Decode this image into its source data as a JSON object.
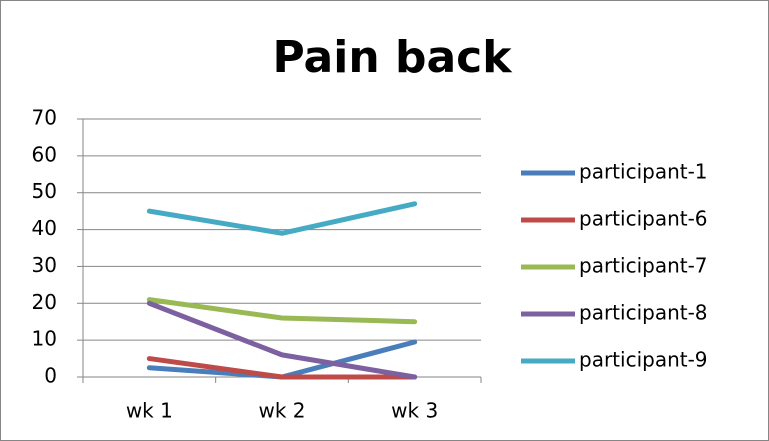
{
  "chart_data": {
    "type": "line",
    "title": "Pain back",
    "categories": [
      "wk 1",
      "wk 2",
      "wk 3"
    ],
    "series": [
      {
        "name": "participant-1",
        "color": "#4a7ebb",
        "values": [
          2.5,
          0,
          9.5
        ]
      },
      {
        "name": "participant-6",
        "color": "#be4b48",
        "values": [
          5,
          0,
          0
        ]
      },
      {
        "name": "participant-7",
        "color": "#98b954",
        "values": [
          21,
          16,
          15
        ]
      },
      {
        "name": "participant-8",
        "color": "#7d60a0",
        "values": [
          20,
          6,
          0
        ]
      },
      {
        "name": "participant-9",
        "color": "#46aac5",
        "values": [
          45,
          39,
          47
        ]
      }
    ],
    "ylim": [
      0,
      70
    ],
    "yticks": [
      0,
      10,
      20,
      30,
      40,
      50,
      60,
      70
    ],
    "grid": true,
    "legend": "right"
  }
}
